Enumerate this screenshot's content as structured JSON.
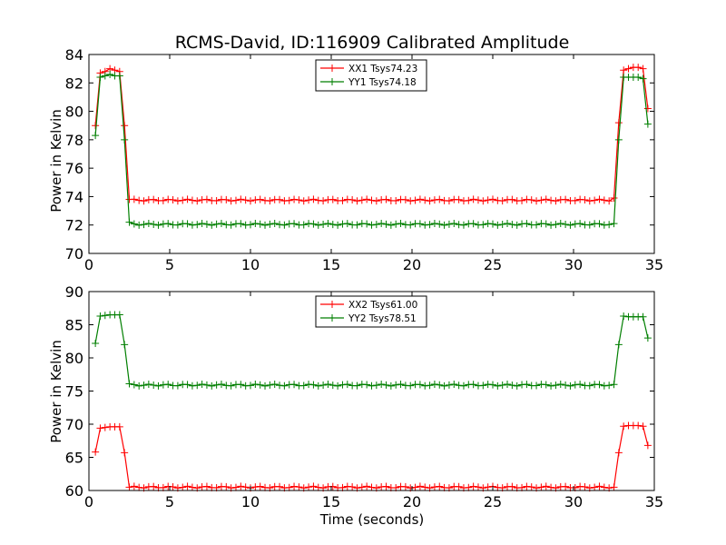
{
  "chart_data": [
    {
      "type": "line",
      "title": "RCMS-David, ID:116909 Calibrated Amplitude",
      "xlabel": "",
      "ylabel": "Power in Kelvin",
      "xlim": [
        0,
        35
      ],
      "ylim": [
        70,
        84
      ],
      "xticks": [
        "0",
        "5",
        "10",
        "15",
        "20",
        "25",
        "30",
        "35"
      ],
      "yticks": [
        "70",
        "72",
        "74",
        "76",
        "78",
        "80",
        "82",
        "84"
      ],
      "legend_position": "top-center",
      "grid": false,
      "x": [
        0.4,
        0.7,
        1.0,
        1.3,
        1.6,
        1.9,
        2.2,
        2.5,
        32.5,
        32.8,
        33.1,
        33.4,
        33.7,
        34.0,
        34.3,
        34.6
      ],
      "series": [
        {
          "name": "XX1 Tsys74.23",
          "color": "#ff0000",
          "plateau_start": 2.5,
          "plateau_end": 32.5,
          "plateau_level": 73.75,
          "values": [
            79.0,
            82.7,
            82.8,
            83.0,
            82.9,
            82.8,
            79.0,
            73.8,
            73.9,
            79.2,
            82.9,
            83.0,
            83.1,
            83.1,
            83.0,
            80.2
          ]
        },
        {
          "name": "YY1 Tsys74.18",
          "color": "#007f00",
          "plateau_start": 2.5,
          "plateau_end": 32.5,
          "plateau_level": 72.05,
          "values": [
            78.3,
            82.4,
            82.5,
            82.6,
            82.5,
            82.5,
            78.0,
            72.2,
            72.1,
            78.0,
            82.4,
            82.4,
            82.4,
            82.4,
            82.3,
            79.1
          ]
        }
      ]
    },
    {
      "type": "line",
      "title": "",
      "xlabel": "Time (seconds)",
      "ylabel": "Power in Kelvin",
      "xlim": [
        0,
        35
      ],
      "ylim": [
        60,
        90
      ],
      "xticks": [
        "0",
        "5",
        "10",
        "15",
        "20",
        "25",
        "30",
        "35"
      ],
      "yticks": [
        "60",
        "65",
        "70",
        "75",
        "80",
        "85",
        "90"
      ],
      "legend_position": "top-center",
      "grid": false,
      "x": [
        0.4,
        0.7,
        1.0,
        1.3,
        1.6,
        1.9,
        2.2,
        2.5,
        32.5,
        32.8,
        33.1,
        33.4,
        33.7,
        34.0,
        34.3,
        34.6
      ],
      "series": [
        {
          "name": "XX2 Tsys61.00",
          "color": "#ff0000",
          "plateau_start": 2.5,
          "plateau_end": 32.5,
          "plateau_level": 60.5,
          "values": [
            65.8,
            69.4,
            69.5,
            69.6,
            69.6,
            69.6,
            65.7,
            60.5,
            60.5,
            65.7,
            69.7,
            69.8,
            69.8,
            69.8,
            69.7,
            66.8
          ]
        },
        {
          "name": "YY2 Tsys78.51",
          "color": "#007f00",
          "plateau_start": 2.5,
          "plateau_end": 32.5,
          "plateau_level": 75.9,
          "values": [
            82.2,
            86.3,
            86.4,
            86.5,
            86.5,
            86.5,
            82.0,
            76.1,
            76.0,
            82.0,
            86.3,
            86.2,
            86.2,
            86.2,
            86.2,
            83.0
          ]
        }
      ]
    }
  ]
}
